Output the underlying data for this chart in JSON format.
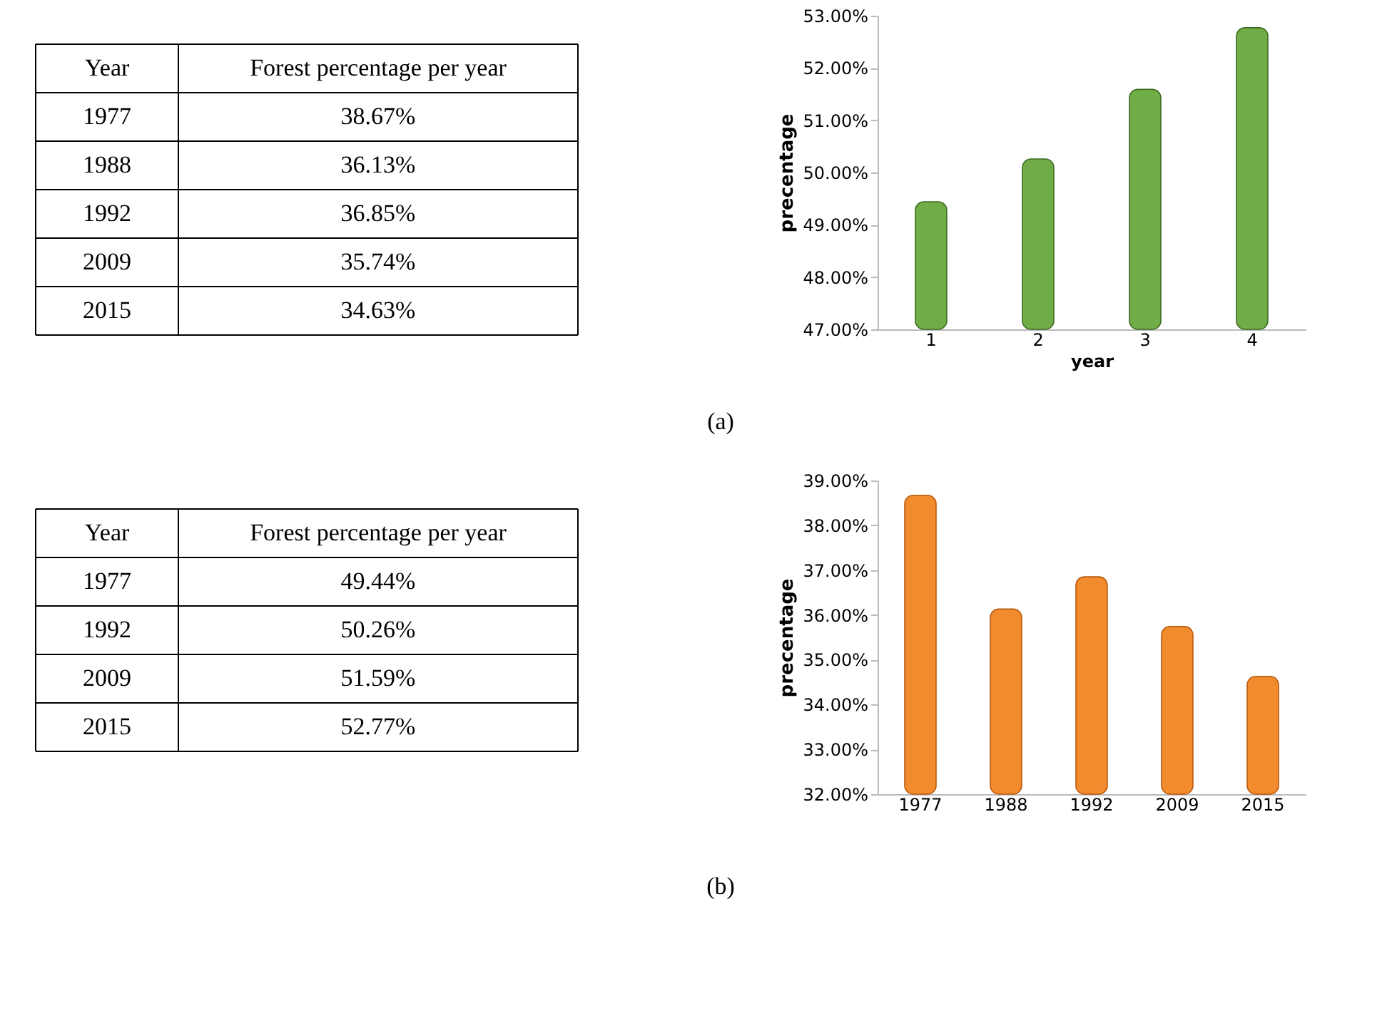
{
  "chart_data": [
    {
      "type": "other",
      "annotations": [
        "Year",
        "Forest percentage per year",
        "1977",
        "38.67%",
        "1988",
        "36.13%",
        "1992",
        "36.85%",
        "2009",
        "35.74%",
        "2015",
        "34.63%",
        "(a)"
      ]
    },
    {
      "type": "bar",
      "xlabel": "year",
      "ylabel": "precentage",
      "categories": [
        "1",
        "2",
        "3",
        "4"
      ],
      "series": [
        {
          "color": "#70ad47",
          "values": [
            49.44,
            50.26,
            51.59,
            52.77
          ]
        }
      ],
      "ylim": [
        47,
        53
      ],
      "yticks": [
        {
          "value": 47,
          "label": "47.00%"
        },
        {
          "value": 48,
          "label": "48.00%"
        },
        {
          "value": 49,
          "label": "49.00%"
        },
        {
          "value": 50,
          "label": "50.00%"
        },
        {
          "value": 51,
          "label": "51.00%"
        },
        {
          "value": 52,
          "label": "52.00%"
        },
        {
          "value": 53,
          "label": "53.00%"
        }
      ],
      "grid": false
    },
    {
      "type": "other",
      "annotations": [
        "Year",
        "Forest percentage per year",
        "1977",
        "49.44%",
        "1992",
        "50.26%",
        "2009",
        "51.59%",
        "2015",
        "52.77%",
        "(b)"
      ]
    },
    {
      "type": "bar",
      "ylabel": "precentage",
      "categories": [
        "1977",
        "1988",
        "1992",
        "2009",
        "2015"
      ],
      "series": [
        {
          "color": "#f28a2e",
          "values": [
            38.67,
            36.13,
            36.85,
            35.74,
            34.63
          ]
        }
      ],
      "ylim": [
        32,
        39
      ],
      "yticks": [
        {
          "value": 32,
          "label": "32.00%"
        },
        {
          "value": 33,
          "label": "33.00%"
        },
        {
          "value": 34,
          "label": "34.00%"
        },
        {
          "value": 35,
          "label": "35.00%"
        },
        {
          "value": 36,
          "label": "36.00%"
        },
        {
          "value": 37,
          "label": "37.00%"
        },
        {
          "value": 38,
          "label": "38.00%"
        },
        {
          "value": 39,
          "label": "39.00%"
        }
      ],
      "grid": false
    }
  ]
}
